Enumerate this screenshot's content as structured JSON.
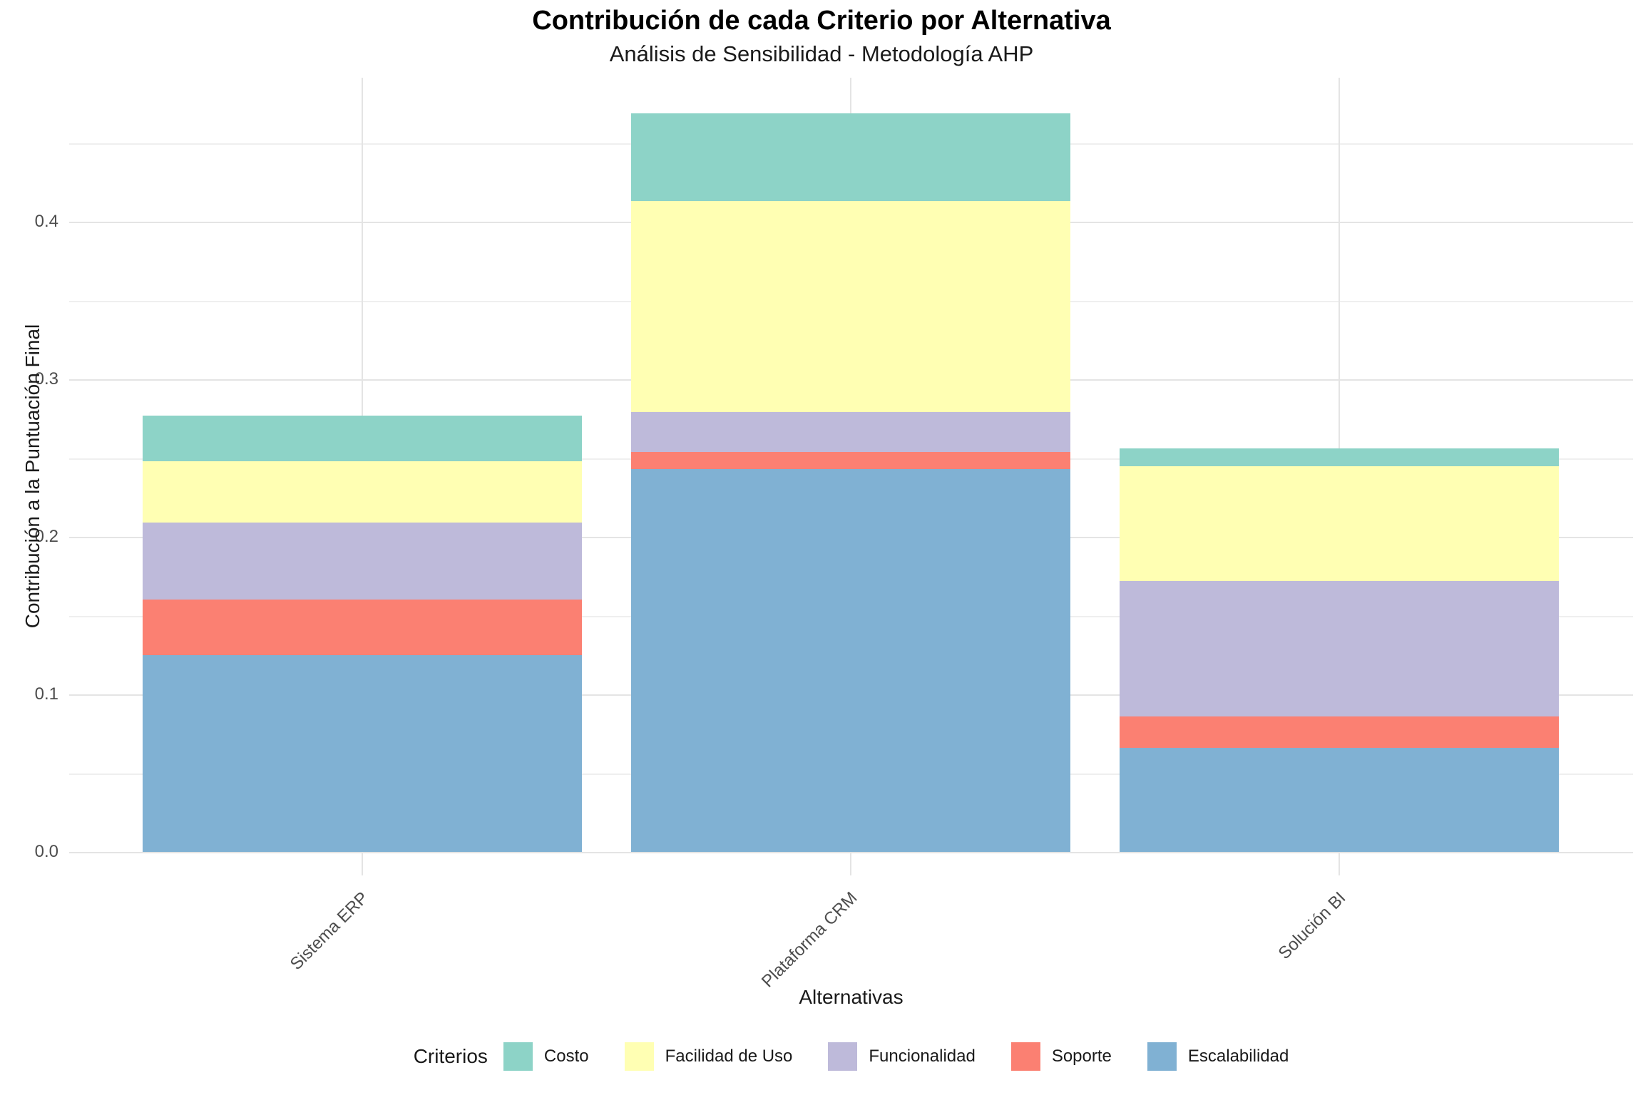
{
  "title": "Contribución de cada Criterio por Alternativa",
  "subtitle": "Análisis de Sensibilidad - Metodología AHP",
  "axes": {
    "x_title": "Alternativas",
    "y_title": "Contribución a la Puntuación Final",
    "y_tick_labels": [
      "0.0",
      "0.1",
      "0.2",
      "0.3",
      "0.4"
    ]
  },
  "legend": {
    "title": "Criterios",
    "items": [
      "Costo",
      "Facilidad de Uso",
      "Funcionalidad",
      "Soporte",
      "Escalabilidad"
    ]
  },
  "chart_data": {
    "type": "bar",
    "stacked": true,
    "title": "Contribución de cada Criterio por Alternativa",
    "subtitle": "Análisis de Sensibilidad - Metodología AHP",
    "xlabel": "Alternativas",
    "ylabel": "Contribución a la Puntuación Final",
    "categories": [
      "Sistema ERP",
      "Plataforma CRM",
      "Solución BI"
    ],
    "series": [
      {
        "name": "Costo",
        "color": "#8DD3C7",
        "values": [
          0.029,
          0.056,
          0.011
        ]
      },
      {
        "name": "Facilidad de Uso",
        "color": "#FFFFB3",
        "values": [
          0.039,
          0.134,
          0.073
        ]
      },
      {
        "name": "Funcionalidad",
        "color": "#BEBADA",
        "values": [
          0.049,
          0.025,
          0.086
        ]
      },
      {
        "name": "Soporte",
        "color": "#FB8072",
        "values": [
          0.035,
          0.011,
          0.02
        ]
      },
      {
        "name": "Escalabilidad",
        "color": "#80B1D3",
        "values": [
          0.125,
          0.243,
          0.066
        ]
      }
    ],
    "stack_order_bottom_to_top": [
      "Escalabilidad",
      "Soporte",
      "Funcionalidad",
      "Facilidad de Uso",
      "Costo"
    ],
    "stack_totals": [
      0.277,
      0.469,
      0.256
    ],
    "ylim": [
      0,
      0.49
    ],
    "y_major_ticks": [
      0.0,
      0.1,
      0.2,
      0.3,
      0.4
    ],
    "y_minor_ticks": [
      0.05,
      0.15,
      0.25,
      0.35,
      0.45
    ],
    "grid": true,
    "legend_position": "bottom",
    "background": "#ffffff",
    "gridline_color": "#e4e4e4"
  }
}
